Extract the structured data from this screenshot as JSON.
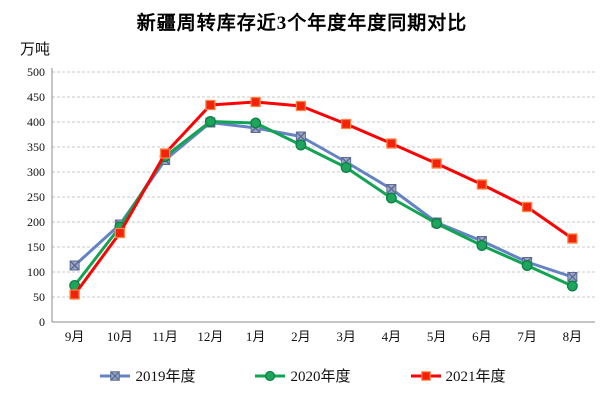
{
  "title": "新疆周转库存近3个年度年度同期对比",
  "unit_label": "万吨",
  "chart_data": {
    "type": "line",
    "title": "新疆周转库存近3个年度年度同期对比",
    "ylabel": "万吨",
    "xlabel": "",
    "categories": [
      "9月",
      "10月",
      "11月",
      "12月",
      "1月",
      "2月",
      "3月",
      "4月",
      "5月",
      "6月",
      "7月",
      "8月"
    ],
    "series": [
      {
        "name": "2019年度",
        "color": "#6583C4",
        "marker": "x-square",
        "marker_fill": "#9AA7C8",
        "marker_stroke": "#5C6A94",
        "values": [
          113,
          195,
          324,
          399,
          388,
          371,
          320,
          266,
          199,
          162,
          120,
          90
        ]
      },
      {
        "name": "2020年度",
        "color": "#12A452",
        "marker": "circle",
        "marker_fill": "#1CA55C",
        "marker_stroke": "#0F8044",
        "values": [
          73,
          190,
          331,
          401,
          398,
          354,
          309,
          248,
          197,
          153,
          113,
          72
        ]
      },
      {
        "name": "2021年度",
        "color": "#FC0204",
        "marker": "square",
        "marker_fill": "#F3230B",
        "marker_stroke": "#FF8040",
        "values": [
          55,
          178,
          337,
          434,
          440,
          432,
          396,
          357,
          317,
          275,
          230,
          167
        ]
      }
    ],
    "ylim": [
      0,
      500
    ],
    "yticks": [
      0,
      50,
      100,
      150,
      200,
      250,
      300,
      350,
      400,
      450,
      500
    ],
    "grid": true,
    "grid_color": "#C8C8C8",
    "axis_color": "#8E8E8E",
    "legend_position": "bottom"
  }
}
